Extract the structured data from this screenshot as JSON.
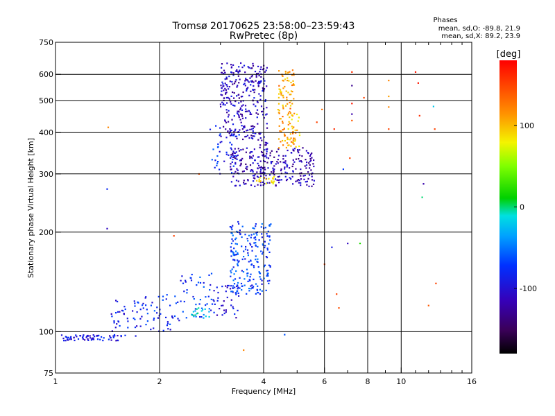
{
  "chart_data": {
    "type": "scatter",
    "title": "Tromsø 20170625 23:58:00–23:59:43",
    "subtitle": "RwPretec (8p)",
    "xlabel": "Frequency [MHz]",
    "ylabel": "Stationary phase Virtual Height [km]",
    "x_scale": "log",
    "y_scale": "log",
    "xlim": [
      1,
      16
    ],
    "ylim": [
      75,
      750
    ],
    "x_ticks": [
      1,
      2,
      4,
      6,
      8,
      10,
      16
    ],
    "x_tick_labels": [
      "1",
      "2",
      "4",
      "6",
      "8",
      "10",
      "16"
    ],
    "y_ticks": [
      75,
      100,
      200,
      300,
      400,
      500,
      600,
      750
    ],
    "y_tick_labels": [
      "75",
      "100",
      "200",
      "300",
      "400",
      "500",
      "600",
      "750"
    ],
    "grid": true,
    "legend": {
      "title": "Phases",
      "lines": [
        "mean, sd,O: -89.8, 21.9",
        "mean, sd,X: 89.2, 23.9"
      ],
      "position": "top-right"
    },
    "colorbar": {
      "label": "[deg]",
      "range": [
        -180,
        180
      ],
      "ticks": [
        100,
        0,
        -100
      ],
      "tick_labels": [
        "100",
        "0",
        "-100"
      ]
    },
    "clusters": [
      {
        "f": [
          1.04,
          1.55
        ],
        "h": [
          94,
          98
        ],
        "n": 70,
        "phase": -95
      },
      {
        "f": [
          1.45,
          1.8
        ],
        "h": [
          97,
          125
        ],
        "n": 45,
        "phase": -90
      },
      {
        "f": [
          1.8,
          2.3
        ],
        "h": [
          100,
          130
        ],
        "n": 45,
        "phase": -80
      },
      {
        "f": [
          2.3,
          2.9
        ],
        "h": [
          110,
          150
        ],
        "n": 45,
        "phase": -75
      },
      {
        "f": [
          2.4,
          2.8
        ],
        "h": [
          110,
          118
        ],
        "n": 20,
        "phase": -25
      },
      {
        "f": [
          2.8,
          3.4
        ],
        "h": [
          110,
          140
        ],
        "n": 40,
        "phase": -95
      },
      {
        "f": [
          3.2,
          4.2
        ],
        "h": [
          130,
          215
        ],
        "n": 220,
        "phase": -70
      },
      {
        "f": [
          2.8,
          3.4
        ],
        "h": [
          300,
          420
        ],
        "n": 45,
        "phase": -80
      },
      {
        "f": [
          3.0,
          3.9
        ],
        "h": [
          380,
          650
        ],
        "n": 260,
        "phase": -110
      },
      {
        "f": [
          3.9,
          4.1
        ],
        "h": [
          280,
          640
        ],
        "n": 70,
        "phase": -110
      },
      {
        "f": [
          3.2,
          5.6
        ],
        "h": [
          275,
          360
        ],
        "n": 260,
        "phase": -115
      },
      {
        "f": [
          4.4,
          4.9
        ],
        "h": [
          350,
          620
        ],
        "n": 110,
        "phase": 110
      },
      {
        "f": [
          4.7,
          5.1
        ],
        "h": [
          360,
          460
        ],
        "n": 25,
        "phase": 100
      },
      {
        "f": [
          3.8,
          4.3
        ],
        "h": [
          280,
          295
        ],
        "n": 18,
        "phase": 95
      }
    ],
    "scattered_points": [
      {
        "f": 1.42,
        "h": 415,
        "phase": 120
      },
      {
        "f": 1.41,
        "h": 270,
        "phase": -80
      },
      {
        "f": 1.41,
        "h": 205,
        "phase": -110
      },
      {
        "f": 2.6,
        "h": 300,
        "phase": 140
      },
      {
        "f": 2.2,
        "h": 195,
        "phase": 150
      },
      {
        "f": 3.5,
        "h": 88,
        "phase": 120
      },
      {
        "f": 4.6,
        "h": 98,
        "phase": -60
      },
      {
        "f": 5.7,
        "h": 430,
        "phase": 150
      },
      {
        "f": 5.9,
        "h": 470,
        "phase": 130
      },
      {
        "f": 6.0,
        "h": 160,
        "phase": 150
      },
      {
        "f": 6.3,
        "h": 180,
        "phase": -90
      },
      {
        "f": 6.4,
        "h": 410,
        "phase": 160
      },
      {
        "f": 6.5,
        "h": 130,
        "phase": 150
      },
      {
        "f": 6.6,
        "h": 118,
        "phase": 145
      },
      {
        "f": 6.8,
        "h": 310,
        "phase": -70
      },
      {
        "f": 7.0,
        "h": 185,
        "phase": -110
      },
      {
        "f": 7.1,
        "h": 335,
        "phase": 150
      },
      {
        "f": 7.2,
        "h": 610,
        "phase": 160
      },
      {
        "f": 7.2,
        "h": 555,
        "phase": -130
      },
      {
        "f": 7.2,
        "h": 490,
        "phase": 170
      },
      {
        "f": 7.2,
        "h": 455,
        "phase": -120
      },
      {
        "f": 7.2,
        "h": 435,
        "phase": 140
      },
      {
        "f": 7.6,
        "h": 185,
        "phase": 20
      },
      {
        "f": 7.8,
        "h": 510,
        "phase": 150
      },
      {
        "f": 9.2,
        "h": 575,
        "phase": 120
      },
      {
        "f": 9.2,
        "h": 515,
        "phase": 110
      },
      {
        "f": 9.2,
        "h": 478,
        "phase": 120
      },
      {
        "f": 9.2,
        "h": 410,
        "phase": 150
      },
      {
        "f": 11.0,
        "h": 610,
        "phase": 170
      },
      {
        "f": 11.2,
        "h": 565,
        "phase": 170
      },
      {
        "f": 11.3,
        "h": 450,
        "phase": 160
      },
      {
        "f": 11.6,
        "h": 280,
        "phase": -120
      },
      {
        "f": 11.5,
        "h": 255,
        "phase": 0
      },
      {
        "f": 12.0,
        "h": 120,
        "phase": 140
      },
      {
        "f": 12.5,
        "h": 410,
        "phase": 150
      },
      {
        "f": 12.4,
        "h": 480,
        "phase": -20
      },
      {
        "f": 12.6,
        "h": 140,
        "phase": 150
      }
    ]
  }
}
